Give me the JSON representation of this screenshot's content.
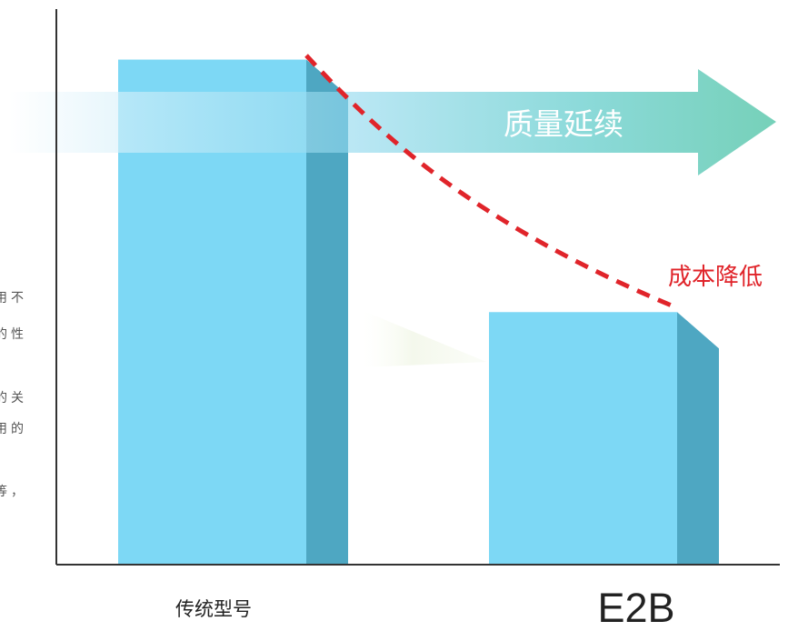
{
  "chart_data": {
    "type": "bar",
    "categories": [
      "传统型号",
      "E2B"
    ],
    "values": [
      100,
      50
    ],
    "ylim": [
      0,
      110
    ],
    "grid": false,
    "annotations": {
      "arrow_label": "质量延续",
      "trend_label": "成本降低"
    }
  },
  "side_text": [
    "用不",
    "的性",
    "的关",
    "用的",
    "等，"
  ],
  "colors": {
    "bar_front": "#7dd8f5",
    "bar_side": "#4ea7c2",
    "arrow_end": "#22b48e",
    "arrow_start": "#cdeef8",
    "trend_line": "#e0242a",
    "axis": "#333333"
  }
}
